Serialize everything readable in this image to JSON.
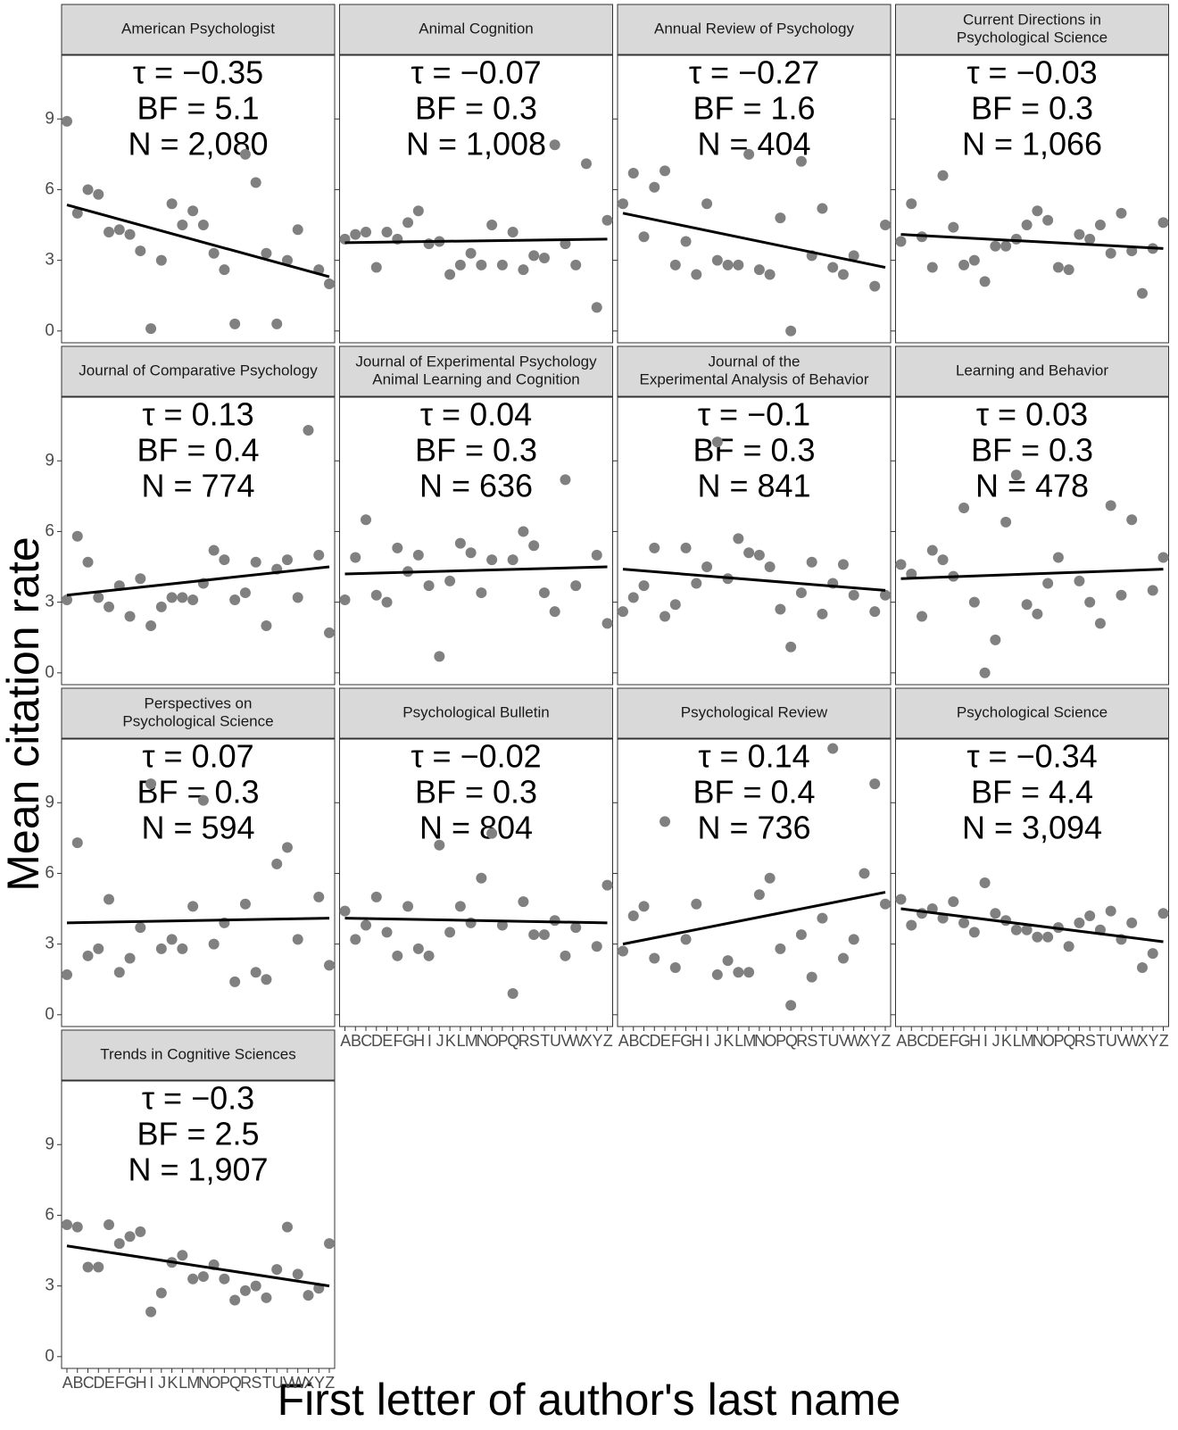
{
  "y_label": "Mean citation rate",
  "x_label": "First letter of author's last name",
  "chart_data": [
    {
      "type": "scatter",
      "title": [
        "American Psychologist"
      ],
      "annotations": [
        "τ = −0.35",
        "BF = 5.1",
        "N = 2,080"
      ],
      "categories": [
        "A",
        "B",
        "C",
        "D",
        "E",
        "F",
        "G",
        "H",
        "I",
        "J",
        "K",
        "L",
        "M",
        "N",
        "O",
        "P",
        "Q",
        "R",
        "S",
        "T",
        "U",
        "V",
        "W",
        "X",
        "Y",
        "Z"
      ],
      "values": [
        8.9,
        5.0,
        6.0,
        5.8,
        4.2,
        4.3,
        4.1,
        3.4,
        0.1,
        3.0,
        5.4,
        4.5,
        5.1,
        4.5,
        3.3,
        2.6,
        0.3,
        7.5,
        6.3,
        3.3,
        0.3,
        3.0,
        4.3,
        null,
        2.6,
        2.0
      ],
      "trend": [
        5.35,
        2.3
      ],
      "color": "#808080",
      "line_color": "#000000",
      "ylim": [
        -0.5,
        11.7
      ],
      "yticks": [
        0,
        3,
        6,
        9
      ]
    },
    {
      "type": "scatter",
      "title": [
        "Animal Cognition"
      ],
      "annotations": [
        "τ = −0.07",
        "BF = 0.3",
        "N = 1,008"
      ],
      "categories": [
        "A",
        "B",
        "C",
        "D",
        "E",
        "F",
        "G",
        "H",
        "I",
        "J",
        "K",
        "L",
        "M",
        "N",
        "O",
        "P",
        "Q",
        "R",
        "S",
        "T",
        "U",
        "V",
        "W",
        "X",
        "Y",
        "Z"
      ],
      "values": [
        3.9,
        4.1,
        4.2,
        2.7,
        4.2,
        3.9,
        4.6,
        5.1,
        3.7,
        3.8,
        2.4,
        2.8,
        3.3,
        2.8,
        4.5,
        2.8,
        4.2,
        2.6,
        3.2,
        3.1,
        7.9,
        3.7,
        2.8,
        7.1,
        1.0,
        4.7
      ],
      "trend": [
        3.75,
        3.9
      ],
      "color": "#808080",
      "line_color": "#000000",
      "ylim": [
        -0.5,
        11.7
      ],
      "yticks": [
        0,
        3,
        6,
        9
      ]
    },
    {
      "type": "scatter",
      "title": [
        "Annual Review of Psychology"
      ],
      "annotations": [
        "τ = −0.27",
        "BF = 1.6",
        "N = 404"
      ],
      "categories": [
        "A",
        "B",
        "C",
        "D",
        "E",
        "F",
        "G",
        "H",
        "I",
        "J",
        "K",
        "L",
        "M",
        "N",
        "O",
        "P",
        "Q",
        "R",
        "S",
        "T",
        "U",
        "V",
        "W",
        "X",
        "Y",
        "Z"
      ],
      "values": [
        5.4,
        6.7,
        4.0,
        6.1,
        6.8,
        2.8,
        3.8,
        2.4,
        5.4,
        3.0,
        2.8,
        2.8,
        7.5,
        2.6,
        2.4,
        4.8,
        0.0,
        7.2,
        3.2,
        5.2,
        2.7,
        2.4,
        3.2,
        null,
        1.9,
        4.5
      ],
      "trend": [
        5.0,
        2.7
      ],
      "color": "#808080",
      "line_color": "#000000",
      "ylim": [
        -0.5,
        11.7
      ],
      "yticks": [
        0,
        3,
        6,
        9
      ]
    },
    {
      "type": "scatter",
      "title": [
        "Current Directions in",
        "Psychological Science"
      ],
      "annotations": [
        "τ = −0.03",
        "BF = 0.3",
        "N = 1,066"
      ],
      "categories": [
        "A",
        "B",
        "C",
        "D",
        "E",
        "F",
        "G",
        "H",
        "I",
        "J",
        "K",
        "L",
        "M",
        "N",
        "O",
        "P",
        "Q",
        "R",
        "S",
        "T",
        "U",
        "V",
        "W",
        "X",
        "Y",
        "Z"
      ],
      "values": [
        3.8,
        5.4,
        4.0,
        2.7,
        6.6,
        4.4,
        2.8,
        3.0,
        2.1,
        3.6,
        3.6,
        3.9,
        4.5,
        5.1,
        4.7,
        2.7,
        2.6,
        4.1,
        3.9,
        4.5,
        3.3,
        5.0,
        3.4,
        1.6,
        3.5,
        4.6
      ],
      "trend": [
        4.1,
        3.5
      ],
      "color": "#808080",
      "line_color": "#000000",
      "ylim": [
        -0.5,
        11.7
      ],
      "yticks": [
        0,
        3,
        6,
        9
      ]
    },
    {
      "type": "scatter",
      "title": [
        "Journal of Comparative Psychology"
      ],
      "annotations": [
        "τ = 0.13",
        "BF = 0.4",
        "N = 774"
      ],
      "categories": [
        "A",
        "B",
        "C",
        "D",
        "E",
        "F",
        "G",
        "H",
        "I",
        "J",
        "K",
        "L",
        "M",
        "N",
        "O",
        "P",
        "Q",
        "R",
        "S",
        "T",
        "U",
        "V",
        "W",
        "X",
        "Y",
        "Z"
      ],
      "values": [
        3.1,
        5.8,
        4.7,
        3.2,
        2.8,
        3.7,
        2.4,
        4.0,
        2.0,
        2.8,
        3.2,
        3.2,
        3.1,
        3.8,
        5.2,
        4.8,
        3.1,
        3.4,
        4.7,
        2.0,
        4.4,
        4.8,
        3.2,
        10.3,
        5.0,
        1.7
      ],
      "trend": [
        3.3,
        4.5
      ],
      "color": "#808080",
      "line_color": "#000000",
      "ylim": [
        -0.5,
        11.7
      ],
      "yticks": [
        0,
        3,
        6,
        9
      ]
    },
    {
      "type": "scatter",
      "title": [
        "Journal of Experimental Psychology",
        "Animal Learning and Cognition"
      ],
      "annotations": [
        "τ = 0.04",
        "BF = 0.3",
        "N = 636"
      ],
      "categories": [
        "A",
        "B",
        "C",
        "D",
        "E",
        "F",
        "G",
        "H",
        "I",
        "J",
        "K",
        "L",
        "M",
        "N",
        "O",
        "P",
        "Q",
        "R",
        "S",
        "T",
        "U",
        "V",
        "W",
        "X",
        "Y",
        "Z"
      ],
      "values": [
        3.1,
        4.9,
        6.5,
        3.3,
        3.0,
        5.3,
        4.3,
        5.0,
        3.7,
        0.7,
        3.9,
        5.5,
        5.1,
        3.4,
        4.8,
        null,
        4.8,
        6.0,
        5.4,
        3.4,
        2.6,
        8.2,
        3.7,
        null,
        5.0,
        2.1
      ],
      "trend": [
        4.2,
        4.5
      ],
      "color": "#808080",
      "line_color": "#000000",
      "ylim": [
        -0.5,
        11.7
      ],
      "yticks": [
        0,
        3,
        6,
        9
      ]
    },
    {
      "type": "scatter",
      "title": [
        "Journal of the",
        "Experimental Analysis of Behavior"
      ],
      "annotations": [
        "τ = −0.1",
        "BF = 0.3",
        "N = 841"
      ],
      "categories": [
        "A",
        "B",
        "C",
        "D",
        "E",
        "F",
        "G",
        "H",
        "I",
        "J",
        "K",
        "L",
        "M",
        "N",
        "O",
        "P",
        "Q",
        "R",
        "S",
        "T",
        "U",
        "V",
        "W",
        "X",
        "Y",
        "Z"
      ],
      "values": [
        2.6,
        3.2,
        3.7,
        5.3,
        2.4,
        2.9,
        5.3,
        3.8,
        4.5,
        9.8,
        4.0,
        5.7,
        5.1,
        5.0,
        4.5,
        2.7,
        1.1,
        3.4,
        4.7,
        2.5,
        3.8,
        4.6,
        3.3,
        null,
        2.6,
        3.3
      ],
      "trend": [
        4.4,
        3.5
      ],
      "color": "#808080",
      "line_color": "#000000",
      "ylim": [
        -0.5,
        11.7
      ],
      "yticks": [
        0,
        3,
        6,
        9
      ]
    },
    {
      "type": "scatter",
      "title": [
        "Learning and Behavior"
      ],
      "annotations": [
        "τ = 0.03",
        "BF = 0.3",
        "N = 478"
      ],
      "categories": [
        "A",
        "B",
        "C",
        "D",
        "E",
        "F",
        "G",
        "H",
        "I",
        "J",
        "K",
        "L",
        "M",
        "N",
        "O",
        "P",
        "Q",
        "R",
        "S",
        "T",
        "U",
        "V",
        "W",
        "X",
        "Y",
        "Z"
      ],
      "values": [
        4.6,
        4.2,
        2.4,
        5.2,
        4.8,
        4.1,
        7.0,
        3.0,
        0.0,
        1.4,
        6.4,
        8.4,
        2.9,
        2.5,
        3.8,
        4.9,
        null,
        3.9,
        3.0,
        2.1,
        7.1,
        3.3,
        6.5,
        null,
        3.5,
        4.9
      ],
      "trend": [
        4.0,
        4.4
      ],
      "color": "#808080",
      "line_color": "#000000",
      "ylim": [
        -0.5,
        11.7
      ],
      "yticks": [
        0,
        3,
        6,
        9
      ]
    },
    {
      "type": "scatter",
      "title": [
        "Perspectives on",
        "Psychological Science"
      ],
      "annotations": [
        "τ = 0.07",
        "BF = 0.3",
        "N = 594"
      ],
      "categories": [
        "A",
        "B",
        "C",
        "D",
        "E",
        "F",
        "G",
        "H",
        "I",
        "J",
        "K",
        "L",
        "M",
        "N",
        "O",
        "P",
        "Q",
        "R",
        "S",
        "T",
        "U",
        "V",
        "W",
        "X",
        "Y",
        "Z"
      ],
      "values": [
        1.7,
        7.3,
        2.5,
        2.8,
        4.9,
        1.8,
        2.4,
        3.7,
        9.8,
        2.8,
        3.2,
        2.8,
        4.6,
        9.1,
        3.0,
        3.9,
        1.4,
        4.7,
        1.8,
        1.5,
        6.4,
        7.1,
        3.2,
        null,
        5.0,
        2.1
      ],
      "trend": [
        3.9,
        4.1
      ],
      "color": "#808080",
      "line_color": "#000000",
      "ylim": [
        -0.5,
        11.7
      ],
      "yticks": [
        0,
        3,
        6,
        9
      ]
    },
    {
      "type": "scatter",
      "title": [
        "Psychological Bulletin"
      ],
      "annotations": [
        "τ = −0.02",
        "BF = 0.3",
        "N = 804"
      ],
      "categories": [
        "A",
        "B",
        "C",
        "D",
        "E",
        "F",
        "G",
        "H",
        "I",
        "J",
        "K",
        "L",
        "M",
        "N",
        "O",
        "P",
        "Q",
        "R",
        "S",
        "T",
        "U",
        "V",
        "W",
        "X",
        "Y",
        "Z"
      ],
      "values": [
        4.4,
        3.2,
        3.8,
        5.0,
        3.5,
        2.5,
        4.6,
        2.8,
        2.5,
        7.2,
        3.5,
        4.6,
        3.9,
        5.8,
        7.7,
        3.8,
        0.9,
        4.8,
        3.4,
        3.4,
        4.0,
        2.5,
        3.7,
        null,
        2.9,
        5.5
      ],
      "trend": [
        4.1,
        3.9
      ],
      "color": "#808080",
      "line_color": "#000000",
      "ylim": [
        -0.5,
        11.7
      ],
      "yticks": [
        0,
        3,
        6,
        9
      ]
    },
    {
      "type": "scatter",
      "title": [
        "Psychological Review"
      ],
      "annotations": [
        "τ = 0.14",
        "BF = 0.4",
        "N = 736"
      ],
      "categories": [
        "A",
        "B",
        "C",
        "D",
        "E",
        "F",
        "G",
        "H",
        "I",
        "J",
        "K",
        "L",
        "M",
        "N",
        "O",
        "P",
        "Q",
        "R",
        "S",
        "T",
        "U",
        "V",
        "W",
        "X",
        "Y",
        "Z"
      ],
      "values": [
        2.7,
        4.2,
        4.6,
        2.4,
        8.2,
        2.0,
        3.2,
        4.7,
        null,
        1.7,
        2.3,
        1.8,
        1.8,
        5.1,
        5.8,
        2.8,
        0.4,
        3.4,
        1.6,
        4.1,
        11.3,
        2.4,
        3.2,
        6.0,
        9.8,
        4.7
      ],
      "trend": [
        3.0,
        5.2
      ],
      "color": "#808080",
      "line_color": "#000000",
      "ylim": [
        -0.5,
        11.7
      ],
      "yticks": [
        0,
        3,
        6,
        9
      ]
    },
    {
      "type": "scatter",
      "title": [
        "Psychological Science"
      ],
      "annotations": [
        "τ = −0.34",
        "BF = 4.4",
        "N = 3,094"
      ],
      "categories": [
        "A",
        "B",
        "C",
        "D",
        "E",
        "F",
        "G",
        "H",
        "I",
        "J",
        "K",
        "L",
        "M",
        "N",
        "O",
        "P",
        "Q",
        "R",
        "S",
        "T",
        "U",
        "V",
        "W",
        "X",
        "Y",
        "Z"
      ],
      "values": [
        4.9,
        3.8,
        4.3,
        4.5,
        4.1,
        4.8,
        3.9,
        3.5,
        5.6,
        4.3,
        4.0,
        3.6,
        3.6,
        3.3,
        3.3,
        3.7,
        2.9,
        3.9,
        4.2,
        3.6,
        4.4,
        3.2,
        3.9,
        2.0,
        2.6,
        4.3
      ],
      "trend": [
        4.5,
        3.1
      ],
      "color": "#808080",
      "line_color": "#000000",
      "ylim": [
        -0.5,
        11.7
      ],
      "yticks": [
        0,
        3,
        6,
        9
      ]
    },
    {
      "type": "scatter",
      "title": [
        "Trends in Cognitive Sciences"
      ],
      "annotations": [
        "τ = −0.3",
        "BF = 2.5",
        "N = 1,907"
      ],
      "categories": [
        "A",
        "B",
        "C",
        "D",
        "E",
        "F",
        "G",
        "H",
        "I",
        "J",
        "K",
        "L",
        "M",
        "N",
        "O",
        "P",
        "Q",
        "R",
        "S",
        "T",
        "U",
        "V",
        "W",
        "X",
        "Y",
        "Z"
      ],
      "values": [
        5.6,
        5.5,
        3.8,
        3.8,
        5.6,
        4.8,
        5.1,
        5.3,
        1.9,
        2.7,
        4.0,
        4.3,
        3.3,
        3.4,
        3.9,
        3.3,
        2.4,
        2.8,
        3.0,
        2.5,
        3.7,
        5.5,
        3.5,
        2.6,
        2.9,
        4.8
      ],
      "trend": [
        4.7,
        3.0
      ],
      "color": "#808080",
      "line_color": "#000000",
      "ylim": [
        -0.5,
        11.7
      ],
      "yticks": [
        0,
        3,
        6,
        9
      ]
    }
  ]
}
